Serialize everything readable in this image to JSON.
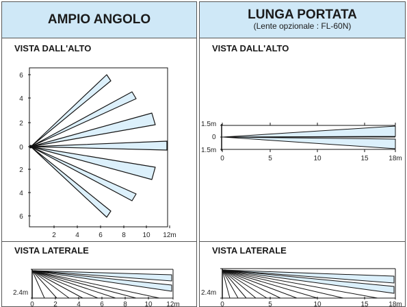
{
  "wide_angle": {
    "title": "AMPIO ANGOLO",
    "top_view": {
      "label": "VISTA DALL'ALTO",
      "x_ticks": [
        "2",
        "4",
        "6",
        "8",
        "10",
        "12m"
      ],
      "y_ticks": [
        "6",
        "4",
        "2",
        "0",
        "2",
        "4",
        "6"
      ]
    },
    "side_view": {
      "label": "VISTA LATERALE",
      "height_label": "2.4m",
      "x_ticks": [
        "0",
        "2",
        "4",
        "6",
        "8",
        "10",
        "12m"
      ]
    }
  },
  "long_range": {
    "title": "LUNGA PORTATA",
    "subtitle": "(Lente opzionale : FL-60N)",
    "top_view": {
      "label": "VISTA DALL'ALTO",
      "x_ticks": [
        "0",
        "5",
        "10",
        "15",
        "18m"
      ],
      "y_ticks": [
        "1.5m",
        "0",
        "1.5m"
      ]
    },
    "side_view": {
      "label": "VISTA LATERALE",
      "height_label": "2.4m",
      "x_ticks": [
        "0",
        "5",
        "10",
        "15",
        "18m"
      ]
    }
  },
  "colors": {
    "beam_fill": "#dcf0fb",
    "header_fill": "#cfe8f7",
    "line": "#111111"
  }
}
